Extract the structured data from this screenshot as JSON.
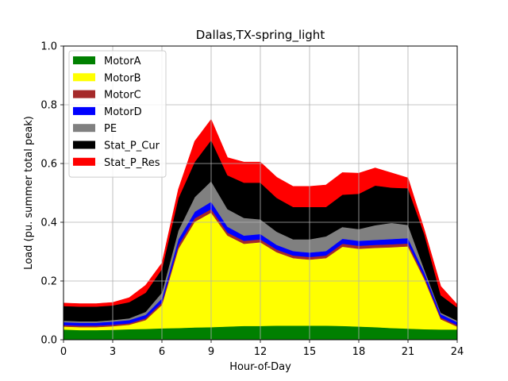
{
  "chart_data": {
    "type": "area",
    "stacked": true,
    "title": "Dallas,TX-spring_light",
    "xlabel": "Hour-of-Day",
    "ylabel": "Load (pu. summer total peak)",
    "xlim": [
      0,
      24
    ],
    "ylim": [
      0,
      1.0
    ],
    "xticks": [
      0,
      3,
      6,
      9,
      12,
      15,
      18,
      21,
      24
    ],
    "xtick_labels": [
      "0",
      "3",
      "6",
      "9",
      "12",
      "15",
      "18",
      "21",
      "24"
    ],
    "yticks": [
      0,
      0.2,
      0.4,
      0.6,
      0.8,
      1.0
    ],
    "ytick_labels": [
      "0.0",
      "0.2",
      "0.4",
      "0.6",
      "0.8",
      "1.0"
    ],
    "grid": true,
    "legend_position": "top-left",
    "x": [
      0,
      1,
      2,
      3,
      4,
      5,
      6,
      7,
      8,
      9,
      10,
      11,
      12,
      13,
      14,
      15,
      16,
      17,
      18,
      19,
      20,
      21,
      22,
      23,
      24
    ],
    "series": [
      {
        "name": "MotorA",
        "color": "#008000",
        "values": [
          0.035,
          0.033,
          0.033,
          0.034,
          0.036,
          0.037,
          0.039,
          0.04,
          0.042,
          0.043,
          0.045,
          0.047,
          0.047,
          0.048,
          0.048,
          0.048,
          0.048,
          0.047,
          0.045,
          0.043,
          0.04,
          0.038,
          0.036,
          0.035,
          0.035
        ]
      },
      {
        "name": "MotorB",
        "color": "#ffff00",
        "values": [
          0.01,
          0.01,
          0.01,
          0.012,
          0.015,
          0.03,
          0.08,
          0.27,
          0.36,
          0.39,
          0.31,
          0.28,
          0.285,
          0.25,
          0.23,
          0.225,
          0.23,
          0.27,
          0.265,
          0.27,
          0.275,
          0.28,
          0.17,
          0.035,
          0.01
        ]
      },
      {
        "name": "MotorC",
        "color": "#a52a2a",
        "values": [
          0.005,
          0.005,
          0.005,
          0.005,
          0.005,
          0.006,
          0.008,
          0.012,
          0.012,
          0.012,
          0.01,
          0.01,
          0.01,
          0.009,
          0.009,
          0.009,
          0.009,
          0.01,
          0.01,
          0.01,
          0.01,
          0.01,
          0.008,
          0.006,
          0.005
        ]
      },
      {
        "name": "MotorD",
        "color": "#0000ff",
        "values": [
          0.01,
          0.01,
          0.01,
          0.011,
          0.011,
          0.012,
          0.014,
          0.02,
          0.022,
          0.025,
          0.02,
          0.018,
          0.018,
          0.016,
          0.015,
          0.015,
          0.015,
          0.017,
          0.017,
          0.017,
          0.018,
          0.018,
          0.015,
          0.011,
          0.01
        ]
      },
      {
        "name": "PE",
        "color": "#808080",
        "values": [
          0.005,
          0.005,
          0.005,
          0.005,
          0.006,
          0.01,
          0.02,
          0.03,
          0.05,
          0.07,
          0.06,
          0.06,
          0.05,
          0.045,
          0.04,
          0.045,
          0.05,
          0.04,
          0.04,
          0.05,
          0.055,
          0.045,
          0.01,
          0.005,
          0.005
        ]
      },
      {
        "name": "Stat_P_Cur",
        "color": "#000000",
        "values": [
          0.05,
          0.05,
          0.05,
          0.05,
          0.055,
          0.065,
          0.08,
          0.11,
          0.12,
          0.14,
          0.115,
          0.12,
          0.125,
          0.115,
          0.11,
          0.11,
          0.1,
          0.11,
          0.12,
          0.135,
          0.12,
          0.125,
          0.12,
          0.06,
          0.045
        ]
      },
      {
        "name": "Stat_P_Res",
        "color": "#ff0000",
        "values": [
          0.01,
          0.01,
          0.01,
          0.01,
          0.015,
          0.025,
          0.02,
          0.03,
          0.07,
          0.07,
          0.06,
          0.07,
          0.07,
          0.07,
          0.07,
          0.07,
          0.075,
          0.075,
          0.07,
          0.06,
          0.05,
          0.035,
          0.015,
          0.03,
          0.01
        ]
      }
    ]
  }
}
